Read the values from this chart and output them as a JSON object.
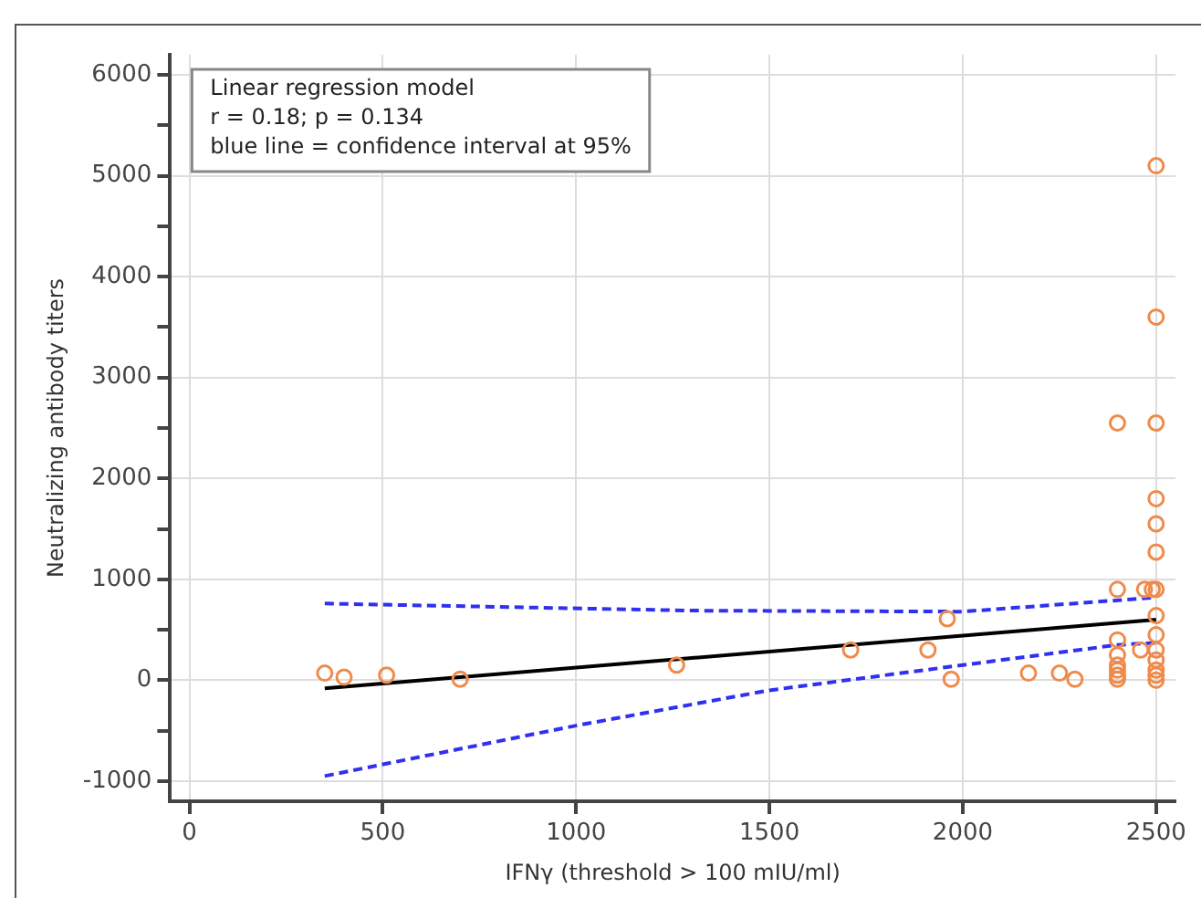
{
  "chart_data": {
    "type": "scatter",
    "xlabel": "IFNγ (threshold > 100 mIU/ml)",
    "ylabel": "Neutralizing antibody titers",
    "annotations": [
      "Linear regression model",
      "r = 0.18; p = 0.134",
      "blue line = confidence interval at 95%"
    ],
    "xlim": [
      -50,
      2550
    ],
    "xticks": [
      0,
      500,
      1000,
      1500,
      2000,
      2500
    ],
    "ylim": [
      -1200,
      6200
    ],
    "yticks": [
      -1000,
      {
        "value": -500,
        "label": null
      },
      0,
      {
        "value": 500,
        "label": null
      },
      1000,
      {
        "value": 1500,
        "label": null
      },
      2000,
      {
        "value": 2500,
        "label": null
      },
      3000,
      {
        "value": 3500,
        "label": null
      },
      4000,
      {
        "value": 4500,
        "label": null
      },
      5000,
      {
        "value": 5500,
        "label": null
      },
      6000
    ],
    "grid": true,
    "legend": false,
    "marker": "circle",
    "series": [
      {
        "color": "#f08a4b",
        "x": [
          350,
          400,
          510,
          700,
          1260,
          1710,
          1910,
          1960,
          1970,
          2170,
          2250,
          2290,
          2400,
          2400,
          2400,
          2400,
          2400,
          2400,
          2400,
          2400,
          2460,
          2470,
          2490,
          2500,
          2500,
          2500,
          2500,
          2500,
          2500,
          2500,
          2500,
          2500,
          2500,
          2500,
          2500,
          2500,
          2500
        ],
        "values": [
          70,
          30,
          50,
          10,
          150,
          300,
          300,
          610,
          10,
          70,
          70,
          10,
          2550,
          900,
          400,
          250,
          150,
          100,
          50,
          10,
          300,
          900,
          900,
          5100,
          3600,
          2550,
          1800,
          1550,
          1270,
          900,
          640,
          450,
          300,
          200,
          100,
          50,
          0
        ]
      },
      {
        "type": "line",
        "color": "#000000",
        "marker": "none",
        "line_style": "solid",
        "x": [
          350,
          2500
        ],
        "values": [
          -80,
          600
        ]
      },
      {
        "type": "line",
        "color": "#3030f0",
        "marker": "none",
        "line_style": "dashed",
        "x": [
          350,
          1300,
          2000,
          2500
        ],
        "values": [
          760,
          690,
          680,
          820
        ]
      },
      {
        "type": "line",
        "color": "#3030f0",
        "marker": "none",
        "line_style": "dashed",
        "x": [
          350,
          1000,
          1500,
          2000,
          2400,
          2500
        ],
        "values": [
          -950,
          -450,
          -100,
          150,
          350,
          370
        ]
      }
    ]
  }
}
